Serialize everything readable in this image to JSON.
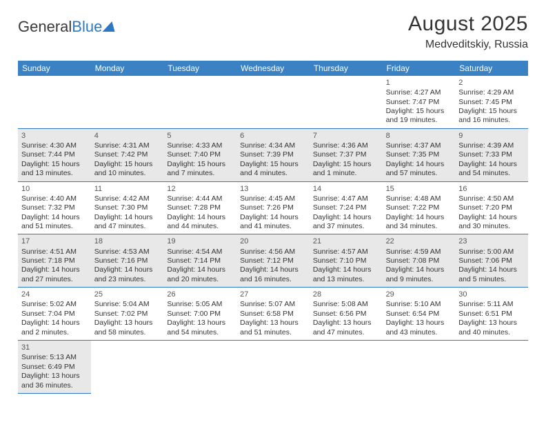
{
  "logo": {
    "part1": "General",
    "part2": "Blue"
  },
  "title": "August 2025",
  "location": "Medveditskiy, Russia",
  "colors": {
    "headerBg": "#3b82c4",
    "headerText": "#ffffff",
    "cellBorder": "#2d78c0",
    "shade": "#e8e8e8",
    "textPrimary": "#333333",
    "textMuted": "#555555",
    "pageBg": "#ffffff"
  },
  "typography": {
    "titleFontSize": 30,
    "locationFontSize": 16,
    "dayHeaderFontSize": 12,
    "cellFontSize": 10.5,
    "logoFontSize": 22
  },
  "weekdays": [
    "Sunday",
    "Monday",
    "Tuesday",
    "Wednesday",
    "Thursday",
    "Friday",
    "Saturday"
  ],
  "cells": [
    {
      "day": "",
      "sunrise": "",
      "sunset": "",
      "daylight": "",
      "shade": false,
      "empty": true
    },
    {
      "day": "",
      "sunrise": "",
      "sunset": "",
      "daylight": "",
      "shade": false,
      "empty": true
    },
    {
      "day": "",
      "sunrise": "",
      "sunset": "",
      "daylight": "",
      "shade": false,
      "empty": true
    },
    {
      "day": "",
      "sunrise": "",
      "sunset": "",
      "daylight": "",
      "shade": false,
      "empty": true
    },
    {
      "day": "",
      "sunrise": "",
      "sunset": "",
      "daylight": "",
      "shade": false,
      "empty": true
    },
    {
      "day": "1",
      "sunrise": "Sunrise: 4:27 AM",
      "sunset": "Sunset: 7:47 PM",
      "daylight": "Daylight: 15 hours and 19 minutes.",
      "shade": false
    },
    {
      "day": "2",
      "sunrise": "Sunrise: 4:29 AM",
      "sunset": "Sunset: 7:45 PM",
      "daylight": "Daylight: 15 hours and 16 minutes.",
      "shade": false
    },
    {
      "day": "3",
      "sunrise": "Sunrise: 4:30 AM",
      "sunset": "Sunset: 7:44 PM",
      "daylight": "Daylight: 15 hours and 13 minutes.",
      "shade": true
    },
    {
      "day": "4",
      "sunrise": "Sunrise: 4:31 AM",
      "sunset": "Sunset: 7:42 PM",
      "daylight": "Daylight: 15 hours and 10 minutes.",
      "shade": true
    },
    {
      "day": "5",
      "sunrise": "Sunrise: 4:33 AM",
      "sunset": "Sunset: 7:40 PM",
      "daylight": "Daylight: 15 hours and 7 minutes.",
      "shade": true
    },
    {
      "day": "6",
      "sunrise": "Sunrise: 4:34 AM",
      "sunset": "Sunset: 7:39 PM",
      "daylight": "Daylight: 15 hours and 4 minutes.",
      "shade": true
    },
    {
      "day": "7",
      "sunrise": "Sunrise: 4:36 AM",
      "sunset": "Sunset: 7:37 PM",
      "daylight": "Daylight: 15 hours and 1 minute.",
      "shade": true
    },
    {
      "day": "8",
      "sunrise": "Sunrise: 4:37 AM",
      "sunset": "Sunset: 7:35 PM",
      "daylight": "Daylight: 14 hours and 57 minutes.",
      "shade": true
    },
    {
      "day": "9",
      "sunrise": "Sunrise: 4:39 AM",
      "sunset": "Sunset: 7:33 PM",
      "daylight": "Daylight: 14 hours and 54 minutes.",
      "shade": true
    },
    {
      "day": "10",
      "sunrise": "Sunrise: 4:40 AM",
      "sunset": "Sunset: 7:32 PM",
      "daylight": "Daylight: 14 hours and 51 minutes.",
      "shade": false
    },
    {
      "day": "11",
      "sunrise": "Sunrise: 4:42 AM",
      "sunset": "Sunset: 7:30 PM",
      "daylight": "Daylight: 14 hours and 47 minutes.",
      "shade": false
    },
    {
      "day": "12",
      "sunrise": "Sunrise: 4:44 AM",
      "sunset": "Sunset: 7:28 PM",
      "daylight": "Daylight: 14 hours and 44 minutes.",
      "shade": false
    },
    {
      "day": "13",
      "sunrise": "Sunrise: 4:45 AM",
      "sunset": "Sunset: 7:26 PM",
      "daylight": "Daylight: 14 hours and 41 minutes.",
      "shade": false
    },
    {
      "day": "14",
      "sunrise": "Sunrise: 4:47 AM",
      "sunset": "Sunset: 7:24 PM",
      "daylight": "Daylight: 14 hours and 37 minutes.",
      "shade": false
    },
    {
      "day": "15",
      "sunrise": "Sunrise: 4:48 AM",
      "sunset": "Sunset: 7:22 PM",
      "daylight": "Daylight: 14 hours and 34 minutes.",
      "shade": false
    },
    {
      "day": "16",
      "sunrise": "Sunrise: 4:50 AM",
      "sunset": "Sunset: 7:20 PM",
      "daylight": "Daylight: 14 hours and 30 minutes.",
      "shade": false
    },
    {
      "day": "17",
      "sunrise": "Sunrise: 4:51 AM",
      "sunset": "Sunset: 7:18 PM",
      "daylight": "Daylight: 14 hours and 27 minutes.",
      "shade": true
    },
    {
      "day": "18",
      "sunrise": "Sunrise: 4:53 AM",
      "sunset": "Sunset: 7:16 PM",
      "daylight": "Daylight: 14 hours and 23 minutes.",
      "shade": true
    },
    {
      "day": "19",
      "sunrise": "Sunrise: 4:54 AM",
      "sunset": "Sunset: 7:14 PM",
      "daylight": "Daylight: 14 hours and 20 minutes.",
      "shade": true
    },
    {
      "day": "20",
      "sunrise": "Sunrise: 4:56 AM",
      "sunset": "Sunset: 7:12 PM",
      "daylight": "Daylight: 14 hours and 16 minutes.",
      "shade": true
    },
    {
      "day": "21",
      "sunrise": "Sunrise: 4:57 AM",
      "sunset": "Sunset: 7:10 PM",
      "daylight": "Daylight: 14 hours and 13 minutes.",
      "shade": true
    },
    {
      "day": "22",
      "sunrise": "Sunrise: 4:59 AM",
      "sunset": "Sunset: 7:08 PM",
      "daylight": "Daylight: 14 hours and 9 minutes.",
      "shade": true
    },
    {
      "day": "23",
      "sunrise": "Sunrise: 5:00 AM",
      "sunset": "Sunset: 7:06 PM",
      "daylight": "Daylight: 14 hours and 5 minutes.",
      "shade": true
    },
    {
      "day": "24",
      "sunrise": "Sunrise: 5:02 AM",
      "sunset": "Sunset: 7:04 PM",
      "daylight": "Daylight: 14 hours and 2 minutes.",
      "shade": false
    },
    {
      "day": "25",
      "sunrise": "Sunrise: 5:04 AM",
      "sunset": "Sunset: 7:02 PM",
      "daylight": "Daylight: 13 hours and 58 minutes.",
      "shade": false
    },
    {
      "day": "26",
      "sunrise": "Sunrise: 5:05 AM",
      "sunset": "Sunset: 7:00 PM",
      "daylight": "Daylight: 13 hours and 54 minutes.",
      "shade": false
    },
    {
      "day": "27",
      "sunrise": "Sunrise: 5:07 AM",
      "sunset": "Sunset: 6:58 PM",
      "daylight": "Daylight: 13 hours and 51 minutes.",
      "shade": false
    },
    {
      "day": "28",
      "sunrise": "Sunrise: 5:08 AM",
      "sunset": "Sunset: 6:56 PM",
      "daylight": "Daylight: 13 hours and 47 minutes.",
      "shade": false
    },
    {
      "day": "29",
      "sunrise": "Sunrise: 5:10 AM",
      "sunset": "Sunset: 6:54 PM",
      "daylight": "Daylight: 13 hours and 43 minutes.",
      "shade": false
    },
    {
      "day": "30",
      "sunrise": "Sunrise: 5:11 AM",
      "sunset": "Sunset: 6:51 PM",
      "daylight": "Daylight: 13 hours and 40 minutes.",
      "shade": false
    },
    {
      "day": "31",
      "sunrise": "Sunrise: 5:13 AM",
      "sunset": "Sunset: 6:49 PM",
      "daylight": "Daylight: 13 hours and 36 minutes.",
      "shade": true
    },
    {
      "day": "",
      "sunrise": "",
      "sunset": "",
      "daylight": "",
      "shade": false,
      "empty": true,
      "noborder": true
    },
    {
      "day": "",
      "sunrise": "",
      "sunset": "",
      "daylight": "",
      "shade": false,
      "empty": true,
      "noborder": true
    },
    {
      "day": "",
      "sunrise": "",
      "sunset": "",
      "daylight": "",
      "shade": false,
      "empty": true,
      "noborder": true
    },
    {
      "day": "",
      "sunrise": "",
      "sunset": "",
      "daylight": "",
      "shade": false,
      "empty": true,
      "noborder": true
    },
    {
      "day": "",
      "sunrise": "",
      "sunset": "",
      "daylight": "",
      "shade": false,
      "empty": true,
      "noborder": true
    },
    {
      "day": "",
      "sunrise": "",
      "sunset": "",
      "daylight": "",
      "shade": false,
      "empty": true,
      "noborder": true
    }
  ]
}
